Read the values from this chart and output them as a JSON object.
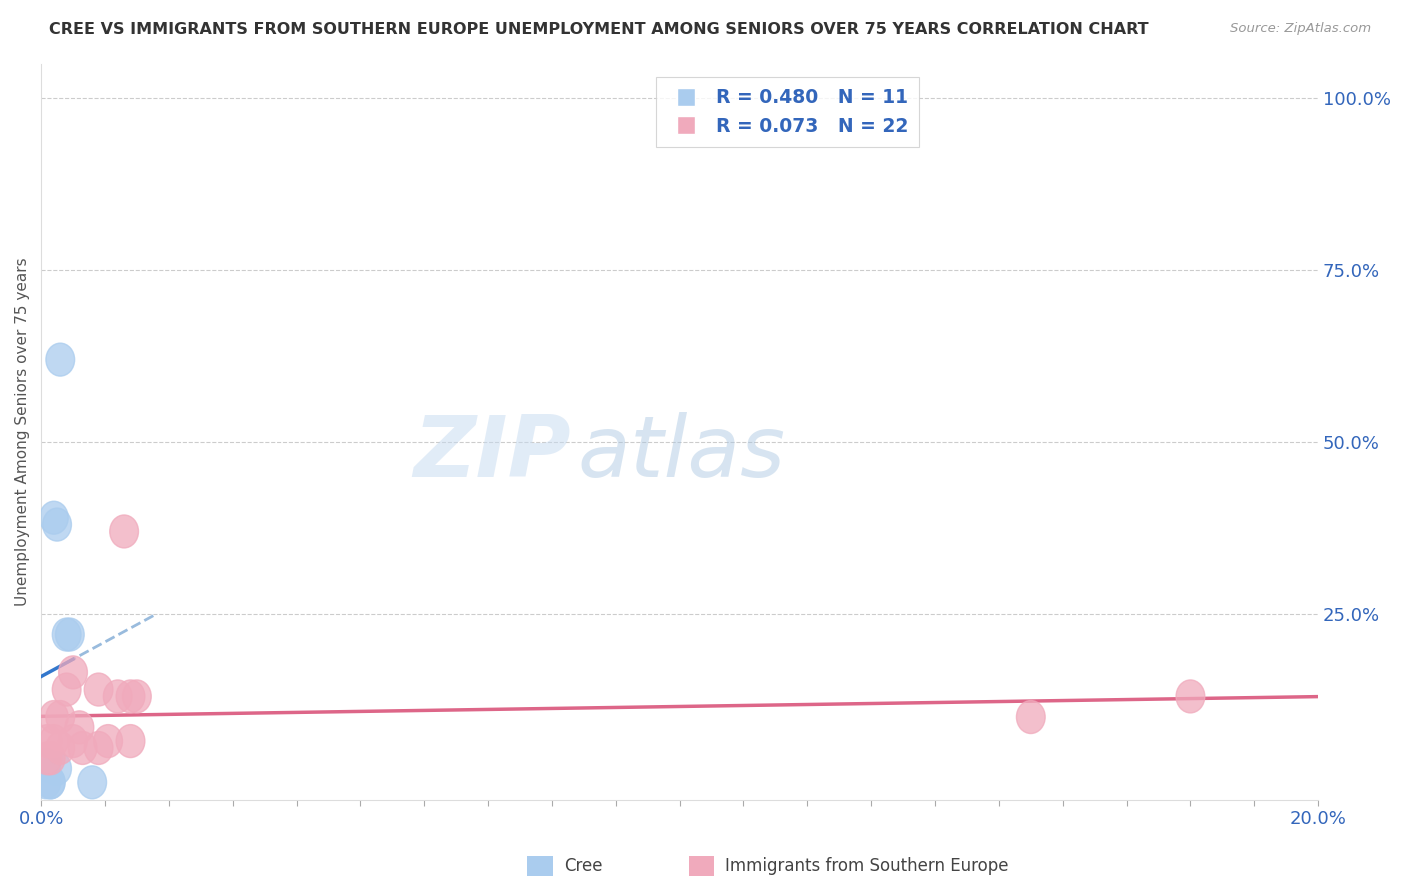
{
  "title": "CREE VS IMMIGRANTS FROM SOUTHERN EUROPE UNEMPLOYMENT AMONG SENIORS OVER 75 YEARS CORRELATION CHART",
  "source": "Source: ZipAtlas.com",
  "ylabel": "Unemployment Among Seniors over 75 years",
  "watermark_zip": "ZIP",
  "watermark_atlas": "atlas",
  "legend_cree_R": 0.48,
  "legend_cree_N": 11,
  "legend_imm_R": 0.073,
  "legend_imm_N": 22,
  "cree_color": "#aaccee",
  "imm_color": "#f0aabc",
  "cree_line_color": "#3377cc",
  "imm_line_color": "#dd6688",
  "cree_dash_color": "#99bbdd",
  "xlim": [
    0.0,
    0.2
  ],
  "ylim": [
    -0.02,
    1.05
  ],
  "right_yticks": [
    0.0,
    0.25,
    0.5,
    0.75,
    1.0
  ],
  "right_yticklabels": [
    "",
    "25.0%",
    "50.0%",
    "75.0%",
    "100.0%"
  ],
  "cree_x": [
    0.0008,
    0.0008,
    0.0015,
    0.0015,
    0.002,
    0.0025,
    0.0025,
    0.003,
    0.004,
    0.0045,
    0.008
  ],
  "cree_y": [
    0.005,
    0.03,
    0.005,
    0.005,
    0.39,
    0.38,
    0.025,
    0.62,
    0.22,
    0.22,
    0.005
  ],
  "imm_x": [
    0.001,
    0.001,
    0.0015,
    0.002,
    0.002,
    0.003,
    0.003,
    0.004,
    0.005,
    0.005,
    0.006,
    0.0065,
    0.009,
    0.009,
    0.0105,
    0.012,
    0.013,
    0.014,
    0.014,
    0.015,
    0.155,
    0.18
  ],
  "imm_y": [
    0.04,
    0.065,
    0.04,
    0.065,
    0.1,
    0.055,
    0.1,
    0.14,
    0.165,
    0.065,
    0.085,
    0.055,
    0.14,
    0.055,
    0.065,
    0.13,
    0.37,
    0.13,
    0.065,
    0.13,
    0.1,
    0.13
  ],
  "background_color": "#ffffff",
  "grid_color": "#cccccc",
  "title_color": "#333333",
  "source_color": "#999999",
  "axis_label_color": "#555555",
  "tick_color": "#3366bb",
  "legend_text_color": "#3366bb"
}
